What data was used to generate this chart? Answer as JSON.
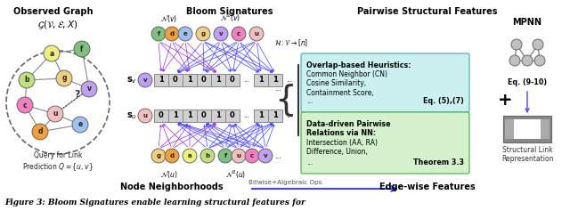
{
  "title_caption": "Figure 3: Bloom Signatures enable learning structural features for",
  "section_titles": [
    "Observed Graph",
    "Bloom Signatures",
    "Pairwise Structural Features"
  ],
  "graph_title": "\\mathcal{G}(\\mathcal{V},\\mathcal{E},X)",
  "query_label": "Query for Link\nPrediction $Q=\\{u,v\\}$",
  "nodes_v_row": [
    "f",
    "d",
    "e",
    "g",
    "v",
    "c",
    "u"
  ],
  "nodes_u_row": [
    "g",
    "d",
    "a",
    "b",
    "f",
    "u",
    "c",
    "v"
  ],
  "bloom_row_v": [
    "1",
    "0",
    "1",
    "0",
    "1",
    "0",
    "...",
    "1",
    "1",
    "..."
  ],
  "bloom_row_u": [
    "0",
    "1",
    "1",
    "0",
    "1",
    "0",
    "...",
    "1",
    "1",
    "..."
  ],
  "sv_label": "$\\mathbf{s}_v$",
  "su_label": "$\\mathbf{s}_u$",
  "hash_label": "$\\mathcal{H}:\\mathcal{V}\\to[n]$",
  "N_v_label": "$\\mathcal{N}(v)$",
  "N2_v_label": "$\\mathcal{N}^2(v)$",
  "N_u_label": "$\\mathcal{N}(u)$",
  "N2_u_label": "$\\mathcal{N}^2(u)$",
  "overlap_box_title": "Overlap-based Heuristics:",
  "overlap_box_text": "Common Neighbor (CN)\nCosine Similarity,\nContainment Score,\n...          Eq. (5),(7)",
  "datadriven_box_title": "Data-driven Pairwise\nRelations via NN:",
  "datadriven_box_text": "Intersection (AA, RA)\nDifference, Union,\n...            Theorem 3.3",
  "mpnn_label": "MPNN",
  "eq_910": "Eq. (9-10)",
  "struct_link_label": "Structural Link\nRepresentation",
  "bitwise_label": "Bitwise+Algebraic Ops",
  "bottom_left": "Node Neighborhoods",
  "bottom_right": "Edge-wise Features",
  "plus_sign": "+",
  "bg_color": "#ffffff",
  "overlap_box_color": "#ccf0f0",
  "datadriven_box_color": "#d4f0cc",
  "node_colors": {
    "a": "#f0f080",
    "b": "#c0e080",
    "c": "#f080c0",
    "d": "#f0a040",
    "e": "#a0c0f0",
    "f": "#80c080",
    "g": "#f0d080",
    "v": "#c0a0f0",
    "u": "#f0c0c0"
  },
  "gray_node_color": "#c0c0c0",
  "arrow_color_blue": "#4444ff",
  "arrow_color_purple": "#9933cc",
  "bloom_bg": "#d0d0d0",
  "bloom_border": "#888888"
}
